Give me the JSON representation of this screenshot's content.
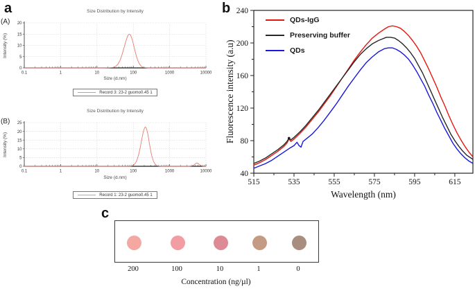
{
  "figure": {
    "panel_a_label": "a",
    "panel_b_label": "b",
    "panel_c_label": "c",
    "sub_labels": {
      "A": "(A)",
      "B": "(B)"
    }
  },
  "chart_data": [
    {
      "id": "dls_A",
      "type": "line",
      "title": "Size Distribution by Intensity",
      "xlabel": "Size (d.nm)",
      "ylabel": "Intensity (%)",
      "x_scale": "log",
      "xlim": [
        0.1,
        10000
      ],
      "ylim": [
        0,
        20
      ],
      "x_ticks": [
        0.1,
        1,
        10,
        100,
        1000,
        10000
      ],
      "x_tick_labels": [
        "0.1",
        "1",
        "10",
        "100",
        "1000",
        "10000"
      ],
      "y_ticks": [
        0,
        5,
        10,
        15,
        20
      ],
      "grid": true,
      "legend": {
        "label": "Record 3: 23-2 guomo0.45 1",
        "color": "#ef8a84"
      },
      "peak_summary": {
        "peak_d_nm": 78,
        "peak_intensity_pct": 15
      },
      "series": [
        {
          "name": "Record 3: 23-2 guomo0.45 1",
          "color": "#e87b72",
          "points": [
            [
              0.1,
              0
            ],
            [
              15,
              0
            ],
            [
              22,
              0.05
            ],
            [
              28,
              0.2
            ],
            [
              33,
              0.7
            ],
            [
              38,
              1.7
            ],
            [
              43,
              3.3
            ],
            [
              48,
              5.4
            ],
            [
              53,
              7.8
            ],
            [
              58,
              10
            ],
            [
              63,
              12
            ],
            [
              68,
              13.6
            ],
            [
              73,
              14.7
            ],
            [
              78,
              15
            ],
            [
              84,
              14.6
            ],
            [
              90,
              13.4
            ],
            [
              97,
              11.6
            ],
            [
              105,
              9.4
            ],
            [
              113,
              7.2
            ],
            [
              122,
              5.2
            ],
            [
              132,
              3.5
            ],
            [
              143,
              2.2
            ],
            [
              155,
              1.3
            ],
            [
              170,
              0.6
            ],
            [
              190,
              0.25
            ],
            [
              215,
              0.08
            ],
            [
              250,
              0
            ],
            [
              10000,
              0
            ]
          ]
        }
      ]
    },
    {
      "id": "dls_B",
      "type": "line",
      "title": "Size Distribution by Intensity",
      "xlabel": "Size (d.nm)",
      "ylabel": "Intensity (%)",
      "x_scale": "log",
      "xlim": [
        0.1,
        10000
      ],
      "ylim": [
        0,
        25
      ],
      "x_ticks": [
        0.1,
        1,
        10,
        100,
        1000,
        10000
      ],
      "x_tick_labels": [
        "0.1",
        "1",
        "10",
        "100",
        "1000",
        "10000"
      ],
      "y_ticks": [
        0,
        5,
        10,
        15,
        20,
        25
      ],
      "grid": true,
      "legend": {
        "label": "Record 1: 23-2 guomo0.45 1",
        "color": "#ef8a84"
      },
      "peak_summary": {
        "peak_d_nm": 210,
        "peak_intensity_pct": 22.5,
        "secondary_peak_d_nm": 5500,
        "secondary_peak_intensity_pct": 1.9
      },
      "series": [
        {
          "name": "Record 1: 23-2 guomo0.45 1",
          "color": "#e87b72",
          "points": [
            [
              0.1,
              0
            ],
            [
              70,
              0
            ],
            [
              85,
              0.05
            ],
            [
              95,
              0.3
            ],
            [
              105,
              0.9
            ],
            [
              115,
              1.9
            ],
            [
              125,
              3.4
            ],
            [
              135,
              5.4
            ],
            [
              145,
              7.9
            ],
            [
              155,
              10.7
            ],
            [
              165,
              13.6
            ],
            [
              175,
              16.4
            ],
            [
              185,
              18.9
            ],
            [
              195,
              20.8
            ],
            [
              205,
              22
            ],
            [
              215,
              22.5
            ],
            [
              225,
              22.1
            ],
            [
              237,
              20.8
            ],
            [
              250,
              18.6
            ],
            [
              265,
              15.7
            ],
            [
              280,
              12.6
            ],
            [
              297,
              9.6
            ],
            [
              315,
              7
            ],
            [
              335,
              4.8
            ],
            [
              358,
              3
            ],
            [
              383,
              1.8
            ],
            [
              410,
              1
            ],
            [
              445,
              0.45
            ],
            [
              485,
              0.15
            ],
            [
              530,
              0.04
            ],
            [
              600,
              0
            ],
            [
              3500,
              0
            ],
            [
              4100,
              0.2
            ],
            [
              4600,
              0.7
            ],
            [
              5100,
              1.4
            ],
            [
              5500,
              1.9
            ],
            [
              5900,
              1.8
            ],
            [
              6400,
              1.2
            ],
            [
              7000,
              0.6
            ],
            [
              7700,
              0.2
            ],
            [
              8500,
              0.05
            ],
            [
              9500,
              0
            ],
            [
              10000,
              0
            ]
          ]
        }
      ]
    },
    {
      "id": "fluorescence",
      "type": "line",
      "title": "",
      "xlabel": "Wavelength (nm)",
      "ylabel": "Fluorescence intensity (a.u)",
      "xlim": [
        515,
        624
      ],
      "ylim": [
        40,
        240
      ],
      "x_ticks": [
        515,
        535,
        555,
        575,
        595,
        615
      ],
      "y_ticks": [
        40,
        80,
        120,
        160,
        200,
        240
      ],
      "grid": false,
      "legend_position": "upper-left",
      "artifact_dot": {
        "wavelength": 532.5,
        "value": 83
      },
      "series": [
        {
          "name": "QDs-IgG",
          "color": "#e3170d",
          "points": [
            [
              515,
              50
            ],
            [
              518,
              53
            ],
            [
              521,
              57
            ],
            [
              524,
              62
            ],
            [
              527,
              67
            ],
            [
              530,
              73
            ],
            [
              531.5,
              77
            ],
            [
              532.5,
              82
            ],
            [
              533.5,
              79
            ],
            [
              535,
              82
            ],
            [
              538,
              89
            ],
            [
              541,
              97
            ],
            [
              544,
              106
            ],
            [
              547,
              115
            ],
            [
              550,
              125
            ],
            [
              553,
              135
            ],
            [
              556,
              146
            ],
            [
              559,
              157
            ],
            [
              562,
              168
            ],
            [
              565,
              179
            ],
            [
              568,
              189
            ],
            [
              571,
              198
            ],
            [
              574,
              206
            ],
            [
              577,
              212
            ],
            [
              580,
              217
            ],
            [
              582,
              220
            ],
            [
              584,
              221
            ],
            [
              586,
              220
            ],
            [
              588,
              218
            ],
            [
              590,
              214
            ],
            [
              592,
              209
            ],
            [
              594,
              203
            ],
            [
              596,
              196
            ],
            [
              598,
              188
            ],
            [
              600,
              178
            ],
            [
              602,
              168
            ],
            [
              604,
              157
            ],
            [
              606,
              146
            ],
            [
              608,
              134
            ],
            [
              610,
              123
            ],
            [
              612,
              111
            ],
            [
              614,
              100
            ],
            [
              616,
              90
            ],
            [
              618,
              81
            ],
            [
              620,
              73
            ],
            [
              622,
              66
            ],
            [
              624,
              60
            ]
          ]
        },
        {
          "name": "Preserving buffer",
          "color": "#262626",
          "points": [
            [
              515,
              52
            ],
            [
              518,
              55
            ],
            [
              521,
              59
            ],
            [
              524,
              64
            ],
            [
              527,
              69
            ],
            [
              530,
              75
            ],
            [
              531.5,
              79
            ],
            [
              532.5,
              83
            ],
            [
              533.5,
              81
            ],
            [
              535,
              84
            ],
            [
              538,
              91
            ],
            [
              541,
              99
            ],
            [
              544,
              108
            ],
            [
              547,
              117
            ],
            [
              550,
              127
            ],
            [
              553,
              137
            ],
            [
              556,
              147
            ],
            [
              559,
              157
            ],
            [
              562,
              167
            ],
            [
              565,
              177
            ],
            [
              568,
              186
            ],
            [
              571,
              193
            ],
            [
              574,
              199
            ],
            [
              577,
              203
            ],
            [
              579,
              205
            ],
            [
              581,
              207
            ],
            [
              583,
              207
            ],
            [
              585,
              206
            ],
            [
              587,
              203
            ],
            [
              589,
              199
            ],
            [
              591,
              194
            ],
            [
              593,
              188
            ],
            [
              595,
              181
            ],
            [
              597,
              172
            ],
            [
              599,
              163
            ],
            [
              601,
              152
            ],
            [
              603,
              141
            ],
            [
              605,
              130
            ],
            [
              607,
              119
            ],
            [
              609,
              108
            ],
            [
              611,
              98
            ],
            [
              613,
              88
            ],
            [
              615,
              80
            ],
            [
              617,
              73
            ],
            [
              619,
              67
            ],
            [
              621,
              62
            ],
            [
              624,
              57
            ]
          ]
        },
        {
          "name": "QDs",
          "color": "#1717dd",
          "points": [
            [
              515,
              46
            ],
            [
              518,
              49
            ],
            [
              521,
              52
            ],
            [
              524,
              56
            ],
            [
              527,
              61
            ],
            [
              530,
              66
            ],
            [
              533,
              71
            ],
            [
              535,
              74
            ],
            [
              536.5,
              78
            ],
            [
              537.5,
              74
            ],
            [
              538.5,
              72
            ],
            [
              539.5,
              79
            ],
            [
              541,
              82
            ],
            [
              544,
              88
            ],
            [
              547,
              96
            ],
            [
              550,
              105
            ],
            [
              553,
              115
            ],
            [
              556,
              125
            ],
            [
              559,
              136
            ],
            [
              562,
              147
            ],
            [
              565,
              157
            ],
            [
              568,
              167
            ],
            [
              571,
              176
            ],
            [
              574,
              183
            ],
            [
              577,
              189
            ],
            [
              580,
              193
            ],
            [
              582,
              194
            ],
            [
              584,
              194
            ],
            [
              586,
              192
            ],
            [
              588,
              189
            ],
            [
              590,
              185
            ],
            [
              592,
              180
            ],
            [
              594,
              173
            ],
            [
              596,
              165
            ],
            [
              598,
              156
            ],
            [
              600,
              147
            ],
            [
              602,
              136
            ],
            [
              604,
              126
            ],
            [
              606,
              115
            ],
            [
              608,
              105
            ],
            [
              610,
              95
            ],
            [
              612,
              86
            ],
            [
              614,
              77
            ],
            [
              616,
              70
            ],
            [
              618,
              64
            ],
            [
              620,
              59
            ],
            [
              622,
              55
            ],
            [
              624,
              52
            ]
          ]
        }
      ]
    }
  ],
  "panel_c": {
    "xlabel": "Concentration (ng/µl)",
    "spots": [
      {
        "label": "200",
        "color": "#f4a8a2"
      },
      {
        "label": "100",
        "color": "#f19da3"
      },
      {
        "label": "10",
        "color": "#dd8a97"
      },
      {
        "label": "1",
        "color": "#c59a85"
      },
      {
        "label": "0",
        "color": "#a98e80"
      }
    ]
  }
}
